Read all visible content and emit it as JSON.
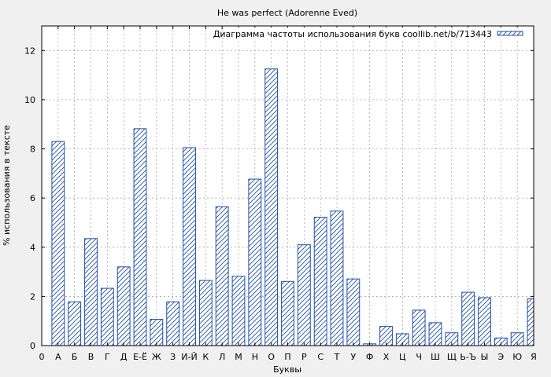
{
  "chart_data": {
    "type": "bar",
    "title": "He was perfect (Adorenne Eved)",
    "xlabel": "Буквы",
    "ylabel": "% использования в тексте",
    "legend": "Диаграмма частоты использования букв coollib.net/b/713443",
    "legend_position": "top-right",
    "grid": true,
    "ylim": [
      0,
      13
    ],
    "yticks": [
      "0",
      "2",
      "4",
      "6",
      "8",
      "10",
      "12"
    ],
    "x_origin_label": "0",
    "categories": [
      "А",
      "Б",
      "В",
      "Г",
      "Д",
      "Е-Ё",
      "Ж",
      "З",
      "И-Й",
      "К",
      "Л",
      "М",
      "Н",
      "О",
      "П",
      "Р",
      "С",
      "Т",
      "У",
      "Ф",
      "Х",
      "Ц",
      "Ч",
      "Ш",
      "Щ",
      "Ь-Ъ",
      "Ы",
      "Э",
      "Ю",
      "Я"
    ],
    "series": [
      {
        "name": "Диаграмма частоты использования букв coollib.net/b/713443",
        "values": [
          8.3,
          1.78,
          4.35,
          2.33,
          3.2,
          8.82,
          1.07,
          1.78,
          8.05,
          2.65,
          5.65,
          2.82,
          6.77,
          11.25,
          2.61,
          4.1,
          5.22,
          5.47,
          2.71,
          0.07,
          0.78,
          0.48,
          1.44,
          0.93,
          0.52,
          2.17,
          1.95,
          0.31,
          0.52,
          1.9
        ]
      }
    ],
    "colors": {
      "bar_stroke": "#1f4fa8",
      "hatch": "#1f4fa8",
      "bar_fill": "#ffffff",
      "grid": "#9a9a9a",
      "plot_bg": "#ffffff",
      "page_bg": "#f0f0f0"
    }
  }
}
